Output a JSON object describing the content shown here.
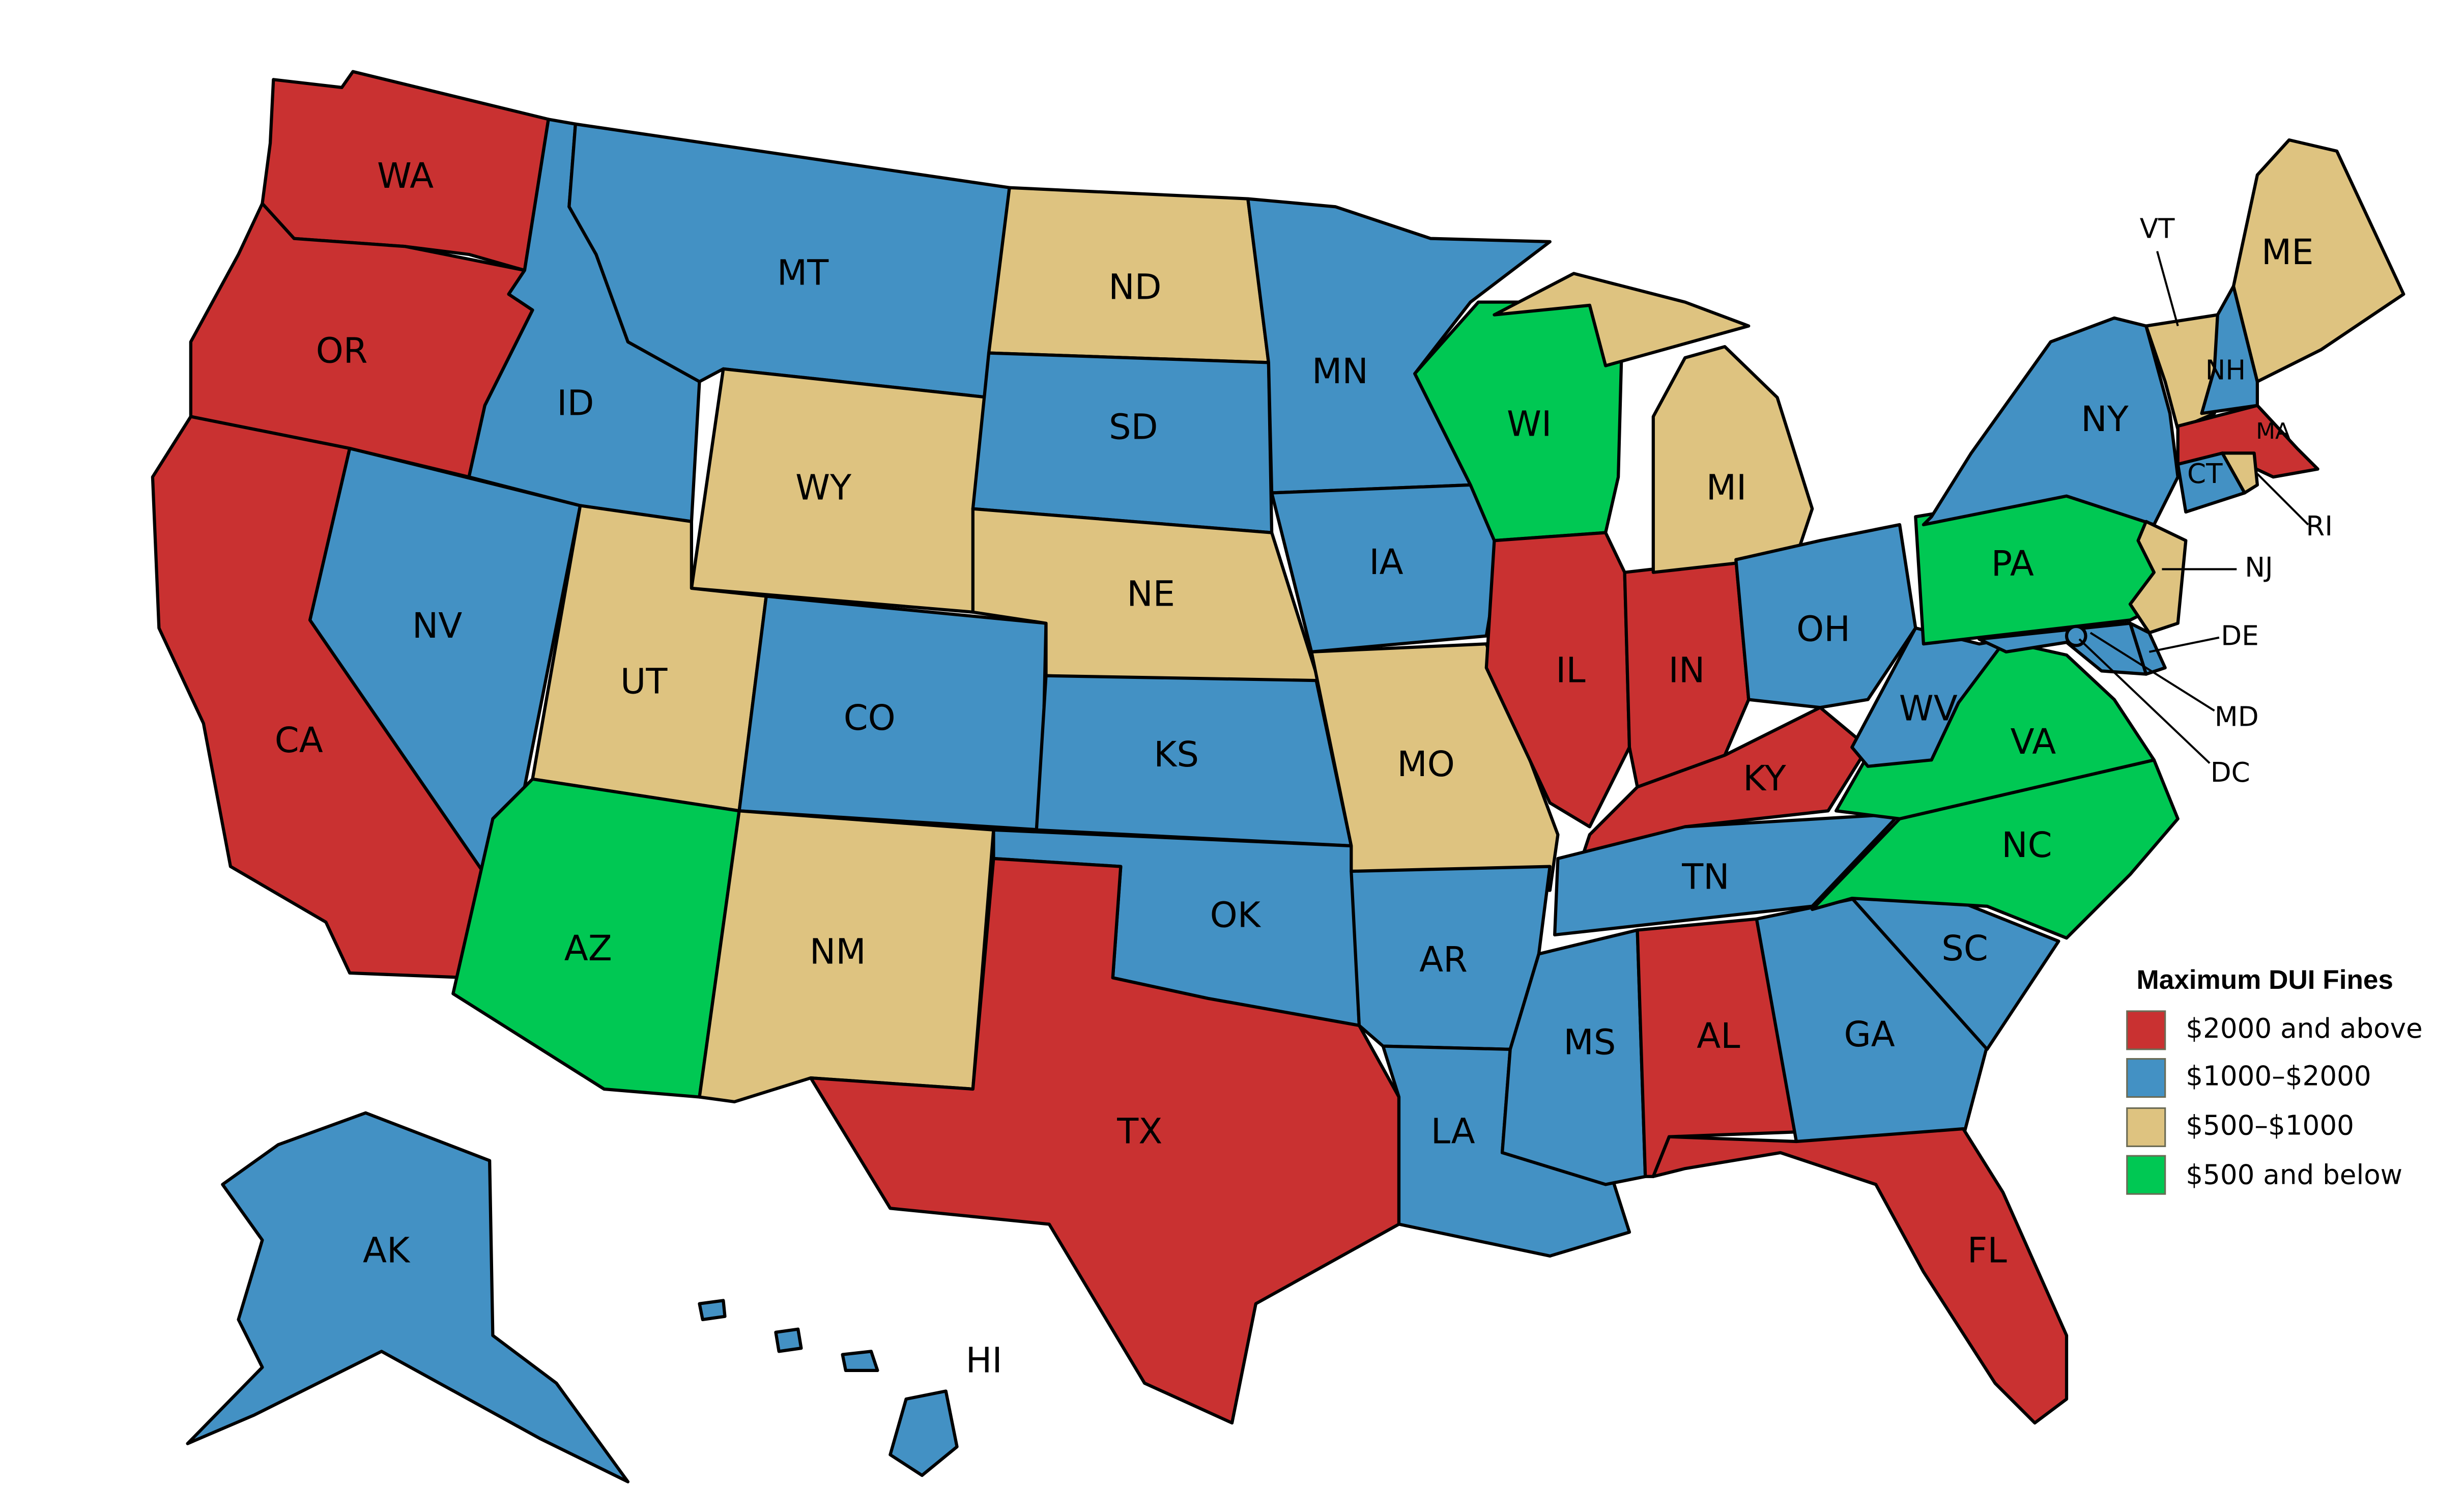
{
  "legend": {
    "title": "Maximum DUI Fines",
    "items": [
      {
        "key": "high",
        "label": "$2000 and above",
        "color": "#C93131"
      },
      {
        "key": "midhigh",
        "label": "$1000–$2000",
        "color": "#4391C4"
      },
      {
        "key": "midlow",
        "label": "$500–$1000",
        "color": "#DEC380"
      },
      {
        "key": "low",
        "label": "$500 and below",
        "color": "#00C853"
      }
    ]
  },
  "states": [
    {
      "abbr": "WA",
      "category": "high"
    },
    {
      "abbr": "OR",
      "category": "high"
    },
    {
      "abbr": "CA",
      "category": "high"
    },
    {
      "abbr": "NV",
      "category": "midhigh"
    },
    {
      "abbr": "ID",
      "category": "midhigh"
    },
    {
      "abbr": "MT",
      "category": "midhigh"
    },
    {
      "abbr": "WY",
      "category": "midlow"
    },
    {
      "abbr": "UT",
      "category": "midlow"
    },
    {
      "abbr": "AZ",
      "category": "low"
    },
    {
      "abbr": "CO",
      "category": "midhigh"
    },
    {
      "abbr": "NM",
      "category": "midlow"
    },
    {
      "abbr": "ND",
      "category": "midlow"
    },
    {
      "abbr": "SD",
      "category": "midhigh"
    },
    {
      "abbr": "NE",
      "category": "midlow"
    },
    {
      "abbr": "KS",
      "category": "midhigh"
    },
    {
      "abbr": "OK",
      "category": "midhigh"
    },
    {
      "abbr": "TX",
      "category": "high"
    },
    {
      "abbr": "MN",
      "category": "midhigh"
    },
    {
      "abbr": "IA",
      "category": "midhigh"
    },
    {
      "abbr": "MO",
      "category": "midlow"
    },
    {
      "abbr": "AR",
      "category": "midhigh"
    },
    {
      "abbr": "LA",
      "category": "midhigh"
    },
    {
      "abbr": "WI",
      "category": "low"
    },
    {
      "abbr": "IL",
      "category": "high"
    },
    {
      "abbr": "IN",
      "category": "high"
    },
    {
      "abbr": "MI",
      "category": "midlow"
    },
    {
      "abbr": "OH",
      "category": "midhigh"
    },
    {
      "abbr": "KY",
      "category": "high"
    },
    {
      "abbr": "TN",
      "category": "midhigh"
    },
    {
      "abbr": "MS",
      "category": "midhigh"
    },
    {
      "abbr": "AL",
      "category": "high"
    },
    {
      "abbr": "GA",
      "category": "midhigh"
    },
    {
      "abbr": "FL",
      "category": "high"
    },
    {
      "abbr": "SC",
      "category": "midhigh"
    },
    {
      "abbr": "NC",
      "category": "low"
    },
    {
      "abbr": "VA",
      "category": "low"
    },
    {
      "abbr": "WV",
      "category": "midhigh"
    },
    {
      "abbr": "PA",
      "category": "low"
    },
    {
      "abbr": "NY",
      "category": "midhigh"
    },
    {
      "abbr": "VT",
      "category": "midlow"
    },
    {
      "abbr": "NH",
      "category": "midhigh"
    },
    {
      "abbr": "ME",
      "category": "midlow"
    },
    {
      "abbr": "MA",
      "category": "high"
    },
    {
      "abbr": "CT",
      "category": "midhigh"
    },
    {
      "abbr": "RI",
      "category": "midlow"
    },
    {
      "abbr": "NJ",
      "category": "midlow"
    },
    {
      "abbr": "DE",
      "category": "midhigh"
    },
    {
      "abbr": "MD",
      "category": "midhigh"
    },
    {
      "abbr": "DC",
      "category": "midhigh"
    },
    {
      "abbr": "AK",
      "category": "midhigh"
    },
    {
      "abbr": "HI",
      "category": "midhigh"
    }
  ]
}
